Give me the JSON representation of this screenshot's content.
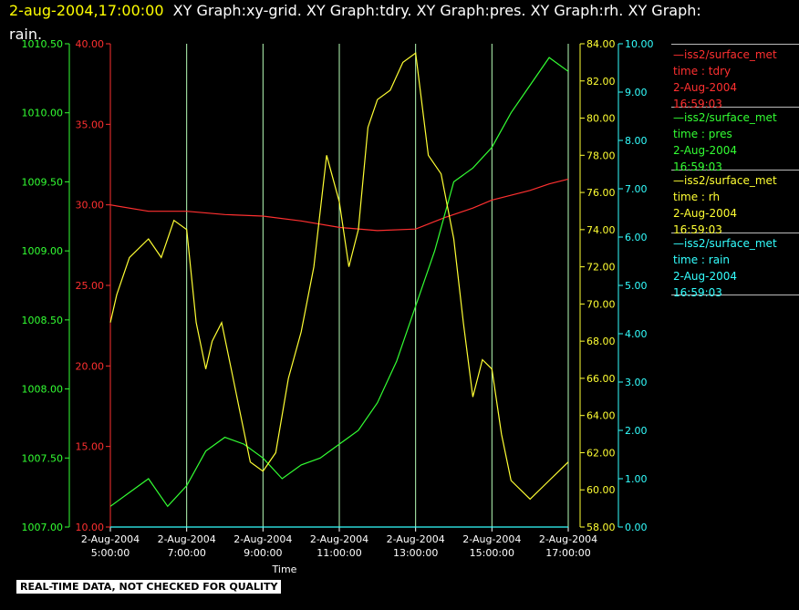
{
  "header": {
    "timestamp": "2-aug-2004,17:00:00",
    "line1_rest": "XY Graph:xy-grid.  XY Graph:tdry.  XY Graph:pres.  XY Graph:rh.  XY Graph:",
    "line2": "rain."
  },
  "disclaimer": "REAL-TIME DATA, NOT CHECKED FOR QUALITY",
  "legend": [
    {
      "source": "iss2/surface_met",
      "var": "time : tdry",
      "date": "2-Aug-2004",
      "time": "16:59:03",
      "color": "#ff3030"
    },
    {
      "source": "iss2/surface_met",
      "var": "time : pres",
      "date": "2-Aug-2004",
      "time": "16:59:03",
      "color": "#33ff33"
    },
    {
      "source": "iss2/surface_met",
      "var": "time : rh",
      "date": "2-Aug-2004",
      "time": "16:59:03",
      "color": "#ffff33"
    },
    {
      "source": "iss2/surface_met",
      "var": "time : rain",
      "date": "2-Aug-2004",
      "time": "16:59:03",
      "color": "#33ffff"
    }
  ],
  "chart_data": {
    "type": "line",
    "xlabel": "Time",
    "x_ticks": [
      {
        "date": "2-Aug-2004",
        "time": "5:00:00"
      },
      {
        "date": "2-Aug-2004",
        "time": "7:00:00"
      },
      {
        "date": "2-Aug-2004",
        "time": "9:00:00"
      },
      {
        "date": "2-Aug-2004",
        "time": "11:00:00"
      },
      {
        "date": "2-Aug-2004",
        "time": "13:00:00"
      },
      {
        "date": "2-Aug-2004",
        "time": "15:00:00"
      },
      {
        "date": "2-Aug-2004",
        "time": "17:00:00"
      }
    ],
    "x_range": [
      "2-Aug-2004 05:00",
      "2-Aug-2004 17:00"
    ],
    "grid": "vertical lines at each x tick",
    "axes": [
      {
        "id": "pres",
        "position": "left-outer",
        "color": "#33ff33",
        "ylim": [
          1007.0,
          1010.5
        ],
        "ticks": [
          "1007.00",
          "1007.50",
          "1008.00",
          "1008.50",
          "1009.00",
          "1009.50",
          "1010.00",
          "1010.50"
        ]
      },
      {
        "id": "tdry",
        "position": "left-inner",
        "color": "#ff3030",
        "ylim": [
          10.0,
          40.0
        ],
        "ticks": [
          "10.00",
          "15.00",
          "20.00",
          "25.00",
          "30.00",
          "35.00",
          "40.00"
        ]
      },
      {
        "id": "rh",
        "position": "right-inner",
        "color": "#ffff33",
        "ylim": [
          58.0,
          84.0
        ],
        "ticks": [
          "58.00",
          "60.00",
          "62.00",
          "64.00",
          "66.00",
          "68.00",
          "70.00",
          "72.00",
          "74.00",
          "76.00",
          "78.00",
          "80.00",
          "82.00",
          "84.00"
        ]
      },
      {
        "id": "rain",
        "position": "right-outer",
        "color": "#33ffff",
        "ylim": [
          0.0,
          10.0
        ],
        "ticks": [
          "0.00",
          "1.00",
          "2.00",
          "3.00",
          "4.00",
          "5.00",
          "6.00",
          "7.00",
          "8.00",
          "9.00",
          "10.00"
        ]
      }
    ],
    "series": [
      {
        "name": "iss2/surface_met time : tdry",
        "axis": "tdry",
        "color": "#ff3030",
        "x": [
          "05:00",
          "06:00",
          "07:00",
          "08:00",
          "09:00",
          "10:00",
          "11:00",
          "12:00",
          "13:00",
          "13:45",
          "14:30",
          "15:00",
          "16:00",
          "16:30",
          "17:00"
        ],
        "y": [
          30.0,
          29.6,
          29.6,
          29.4,
          29.3,
          29.0,
          28.6,
          28.4,
          28.5,
          29.2,
          29.8,
          30.3,
          30.9,
          31.3,
          31.6
        ]
      },
      {
        "name": "iss2/surface_met time : pres",
        "axis": "pres",
        "color": "#33ff33",
        "x": [
          "05:00",
          "05:30",
          "06:00",
          "06:30",
          "07:00",
          "07:30",
          "08:00",
          "08:30",
          "09:00",
          "09:30",
          "10:00",
          "10:30",
          "11:00",
          "11:30",
          "12:00",
          "12:30",
          "13:00",
          "13:30",
          "14:00",
          "14:30",
          "15:00",
          "15:30",
          "16:00",
          "16:30",
          "17:00"
        ],
        "y": [
          1007.15,
          1007.25,
          1007.35,
          1007.15,
          1007.3,
          1007.55,
          1007.65,
          1007.6,
          1007.5,
          1007.35,
          1007.45,
          1007.5,
          1007.6,
          1007.7,
          1007.9,
          1008.2,
          1008.6,
          1009.0,
          1009.5,
          1009.6,
          1009.75,
          1010.0,
          1010.2,
          1010.4,
          1010.3
        ]
      },
      {
        "name": "iss2/surface_met time : rh",
        "axis": "rh",
        "color": "#ffff33",
        "x": [
          "05:00",
          "05:10",
          "05:30",
          "06:00",
          "06:20",
          "06:40",
          "07:00",
          "07:15",
          "07:30",
          "07:40",
          "07:55",
          "08:10",
          "08:25",
          "08:40",
          "09:00",
          "09:20",
          "09:40",
          "10:00",
          "10:20",
          "10:40",
          "11:00",
          "11:15",
          "11:30",
          "11:45",
          "12:00",
          "12:20",
          "12:40",
          "13:00",
          "13:20",
          "13:40",
          "14:00",
          "14:15",
          "14:30",
          "14:45",
          "15:00",
          "15:15",
          "15:30",
          "16:00",
          "16:30",
          "17:00"
        ],
        "y": [
          69.0,
          70.5,
          72.5,
          73.5,
          72.5,
          74.5,
          74.0,
          69.0,
          66.5,
          68.0,
          69.0,
          66.5,
          64.0,
          61.5,
          61.0,
          62.0,
          66.0,
          68.5,
          72.0,
          78.0,
          75.5,
          72.0,
          74.0,
          79.5,
          81.0,
          81.5,
          83.0,
          83.5,
          78.0,
          77.0,
          73.5,
          69.0,
          65.0,
          67.0,
          66.5,
          63.0,
          60.5,
          59.5,
          60.5,
          61.5
        ]
      },
      {
        "name": "iss2/surface_met time : rain",
        "axis": "rain",
        "color": "#33ffff",
        "x": [
          "05:00",
          "17:00"
        ],
        "y": [
          0.0,
          0.0
        ]
      }
    ]
  }
}
